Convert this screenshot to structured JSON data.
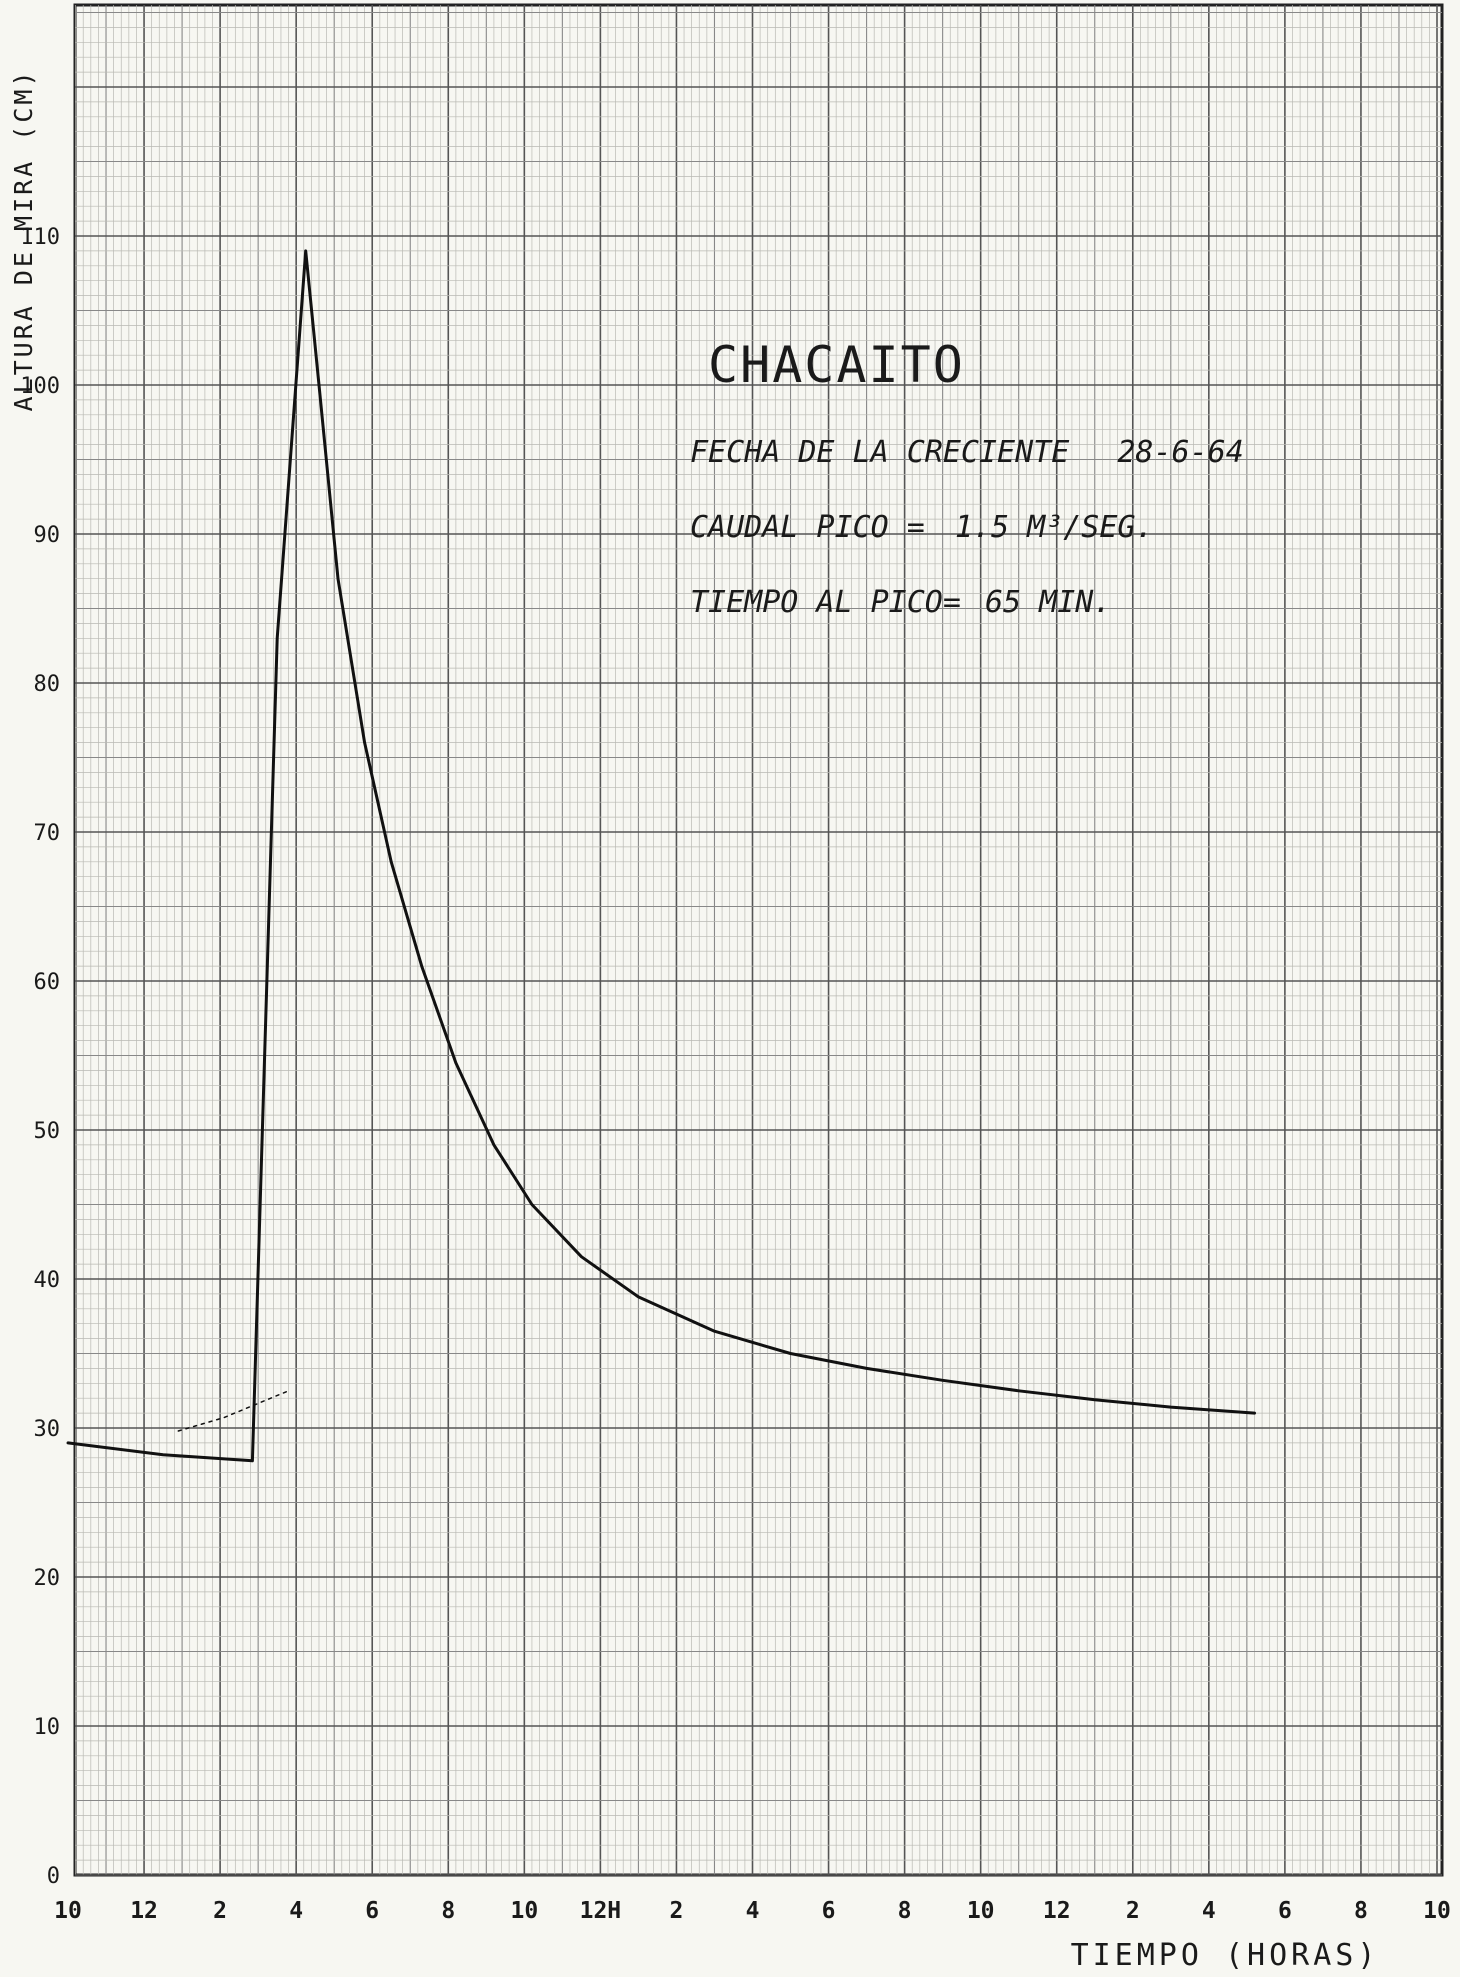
{
  "chart_data": {
    "type": "line",
    "title": "CHACAITO",
    "annotations": [
      {
        "label": "FECHA DE LA CRECIENTE",
        "value": "28-6-64"
      },
      {
        "label": "CAUDAL PICO =",
        "value": "1.5 M³/SEG."
      },
      {
        "label": "TIEMPO AL PICO=",
        "value": "65 MIN."
      }
    ],
    "ylabel": "ALTURA DE MIRA (CM)",
    "xlabel": "TIEMPO (HORAS)",
    "x_tick_labels": [
      "10",
      "12",
      "2",
      "4",
      "6",
      "8",
      "10",
      "12H",
      "2",
      "4",
      "6",
      "8",
      "10",
      "12",
      "2",
      "4",
      "6",
      "8",
      "10"
    ],
    "y_tick_labels": [
      "0",
      "10",
      "20",
      "30",
      "40",
      "50",
      "60",
      "70",
      "80",
      "90",
      "100",
      "110"
    ],
    "xlim": [
      0,
      36
    ],
    "ylim": [
      0,
      125
    ],
    "grid": true,
    "x_unit_note": "x in hours elapsed from the first tick (10)",
    "series": [
      {
        "values": [
          [
            0,
            29
          ],
          [
            2.5,
            28.2
          ],
          [
            4.85,
            27.8
          ],
          [
            4.9,
            32
          ],
          [
            5.5,
            83
          ],
          [
            6.25,
            109
          ],
          [
            6.6,
            100
          ],
          [
            7.1,
            87
          ],
          [
            7.8,
            76
          ],
          [
            8.5,
            68
          ],
          [
            9.3,
            61
          ],
          [
            10.2,
            54.5
          ],
          [
            11.2,
            49
          ],
          [
            12.2,
            45
          ],
          [
            13.5,
            41.5
          ],
          [
            15,
            38.8
          ],
          [
            17,
            36.5
          ],
          [
            19,
            35
          ],
          [
            21,
            34
          ],
          [
            23,
            33.2
          ],
          [
            25,
            32.5
          ],
          [
            27,
            31.9
          ],
          [
            29,
            31.4
          ],
          [
            31.2,
            31
          ]
        ]
      },
      {
        "style": "dotted",
        "values": [
          [
            2.9,
            29.8
          ],
          [
            4.1,
            30.7
          ],
          [
            5.8,
            32.5
          ]
        ]
      }
    ]
  }
}
